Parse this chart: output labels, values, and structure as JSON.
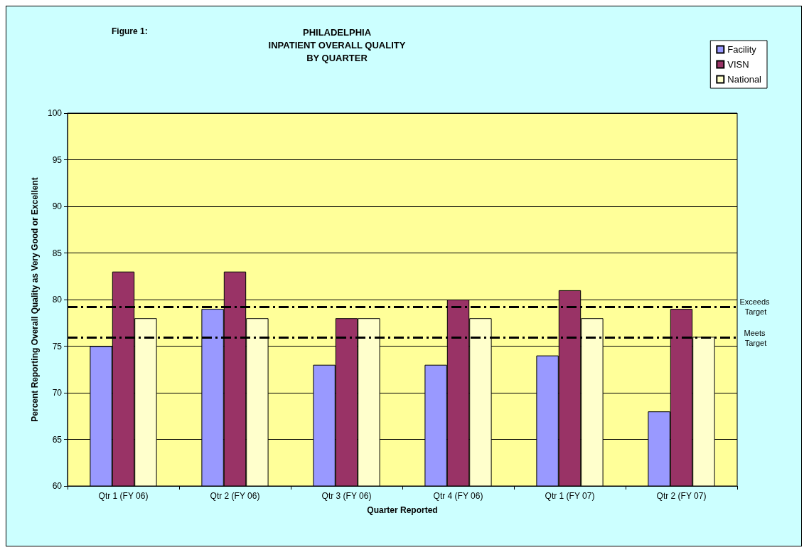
{
  "chart_data": {
    "type": "bar",
    "title": "PHILADELPHIA\nINPATIENT OVERALL QUALITY\nBY QUARTER",
    "xlabel": "Quarter Reported",
    "ylabel": "Percent Reporting Overall Quality as Very Good or Excellent",
    "annotations": [
      "Figure 1:"
    ],
    "categories": [
      "Qtr 1 (FY 06)",
      "Qtr 2 (FY 06)",
      "Qtr 3 (FY 06)",
      "Qtr 4 (FY 06)",
      "Qtr 1 (FY 07)",
      "Qtr 2 (FY 07)"
    ],
    "series": [
      {
        "name": "Facility",
        "color": "#9999ff",
        "values": [
          75,
          79,
          73,
          73,
          74,
          68
        ]
      },
      {
        "name": "VISN",
        "color": "#993366",
        "values": [
          83,
          83,
          78,
          80,
          81,
          79
        ]
      },
      {
        "name": "National",
        "color": "#ffffcc",
        "values": [
          78,
          78,
          78,
          78,
          78,
          76
        ]
      }
    ],
    "ylim": [
      60,
      100
    ],
    "yticks": [
      60,
      65,
      70,
      75,
      80,
      85,
      90,
      95,
      100
    ],
    "grid": "y",
    "legend": "top right",
    "ref_lines": [
      {
        "axis": "y",
        "value": 79.2,
        "label": "Exceeds Target",
        "color": "#000000",
        "line_style": "dashed"
      },
      {
        "axis": "y",
        "value": 75.9,
        "label": "Meets Target",
        "color": "#000000",
        "line_style": "dashed"
      }
    ]
  }
}
